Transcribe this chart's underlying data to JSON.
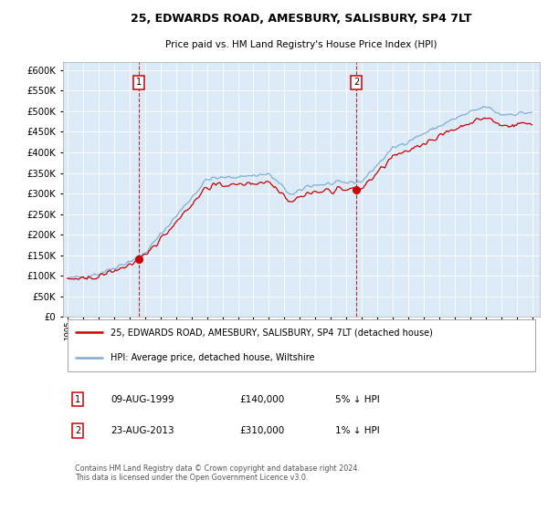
{
  "title1": "25, EDWARDS ROAD, AMESBURY, SALISBURY, SP4 7LT",
  "title2": "Price paid vs. HM Land Registry's House Price Index (HPI)",
  "sale1_date": "09-AUG-1999",
  "sale1_price": 140000,
  "sale1_label": "1",
  "sale1_year": 1999.6,
  "sale2_date": "23-AUG-2013",
  "sale2_price": 310000,
  "sale2_label": "2",
  "sale2_year": 2013.64,
  "legend_line1": "25, EDWARDS ROAD, AMESBURY, SALISBURY, SP4 7LT (detached house)",
  "legend_line2": "HPI: Average price, detached house, Wiltshire",
  "table_row1": [
    "1",
    "09-AUG-1999",
    "£140,000",
    "5% ↓ HPI"
  ],
  "table_row2": [
    "2",
    "23-AUG-2013",
    "£310,000",
    "1% ↓ HPI"
  ],
  "footnote": "Contains HM Land Registry data © Crown copyright and database right 2024.\nThis data is licensed under the Open Government Licence v3.0.",
  "bg_color": "#dce9f7",
  "line_red_color": "#cc0000",
  "line_blue_color": "#7aadd4",
  "ylim": [
    0,
    620000
  ],
  "xlim_min": 1994.7,
  "xlim_max": 2025.5
}
